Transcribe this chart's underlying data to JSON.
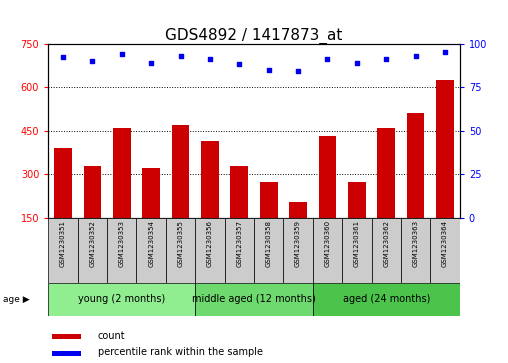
{
  "title": "GDS4892 / 1417873_at",
  "samples": [
    "GSM1230351",
    "GSM1230352",
    "GSM1230353",
    "GSM1230354",
    "GSM1230355",
    "GSM1230356",
    "GSM1230357",
    "GSM1230358",
    "GSM1230359",
    "GSM1230360",
    "GSM1230361",
    "GSM1230362",
    "GSM1230363",
    "GSM1230364"
  ],
  "counts": [
    390,
    330,
    460,
    320,
    470,
    415,
    330,
    275,
    205,
    430,
    275,
    460,
    510,
    625
  ],
  "percentile_ranks": [
    92,
    90,
    94,
    89,
    93,
    91,
    88,
    85,
    84,
    91,
    89,
    91,
    93,
    95
  ],
  "groups": [
    {
      "label": "young (2 months)",
      "start": 0,
      "end": 5,
      "color": "#90EE90"
    },
    {
      "label": "middle aged (12 months)",
      "start": 5,
      "end": 9,
      "color": "#6ED96E"
    },
    {
      "label": "aged (24 months)",
      "start": 9,
      "end": 14,
      "color": "#4CC44C"
    }
  ],
  "bar_color": "#CC0000",
  "dot_color": "#0000EE",
  "ylim_left": [
    150,
    750
  ],
  "ylim_right": [
    0,
    100
  ],
  "yticks_left": [
    150,
    300,
    450,
    600,
    750
  ],
  "yticks_right": [
    0,
    25,
    50,
    75,
    100
  ],
  "grid_values": [
    300,
    450,
    600
  ],
  "title_fontsize": 11,
  "tick_fontsize": 7,
  "sample_fontsize": 5,
  "group_fontsize": 7,
  "legend_fontsize": 7,
  "bar_width": 0.6,
  "bg_color": "#FFFFFF",
  "sample_box_color": "#CCCCCC",
  "legend_items": [
    "count",
    "percentile rank within the sample"
  ],
  "legend_colors": [
    "#CC0000",
    "#0000EE"
  ]
}
